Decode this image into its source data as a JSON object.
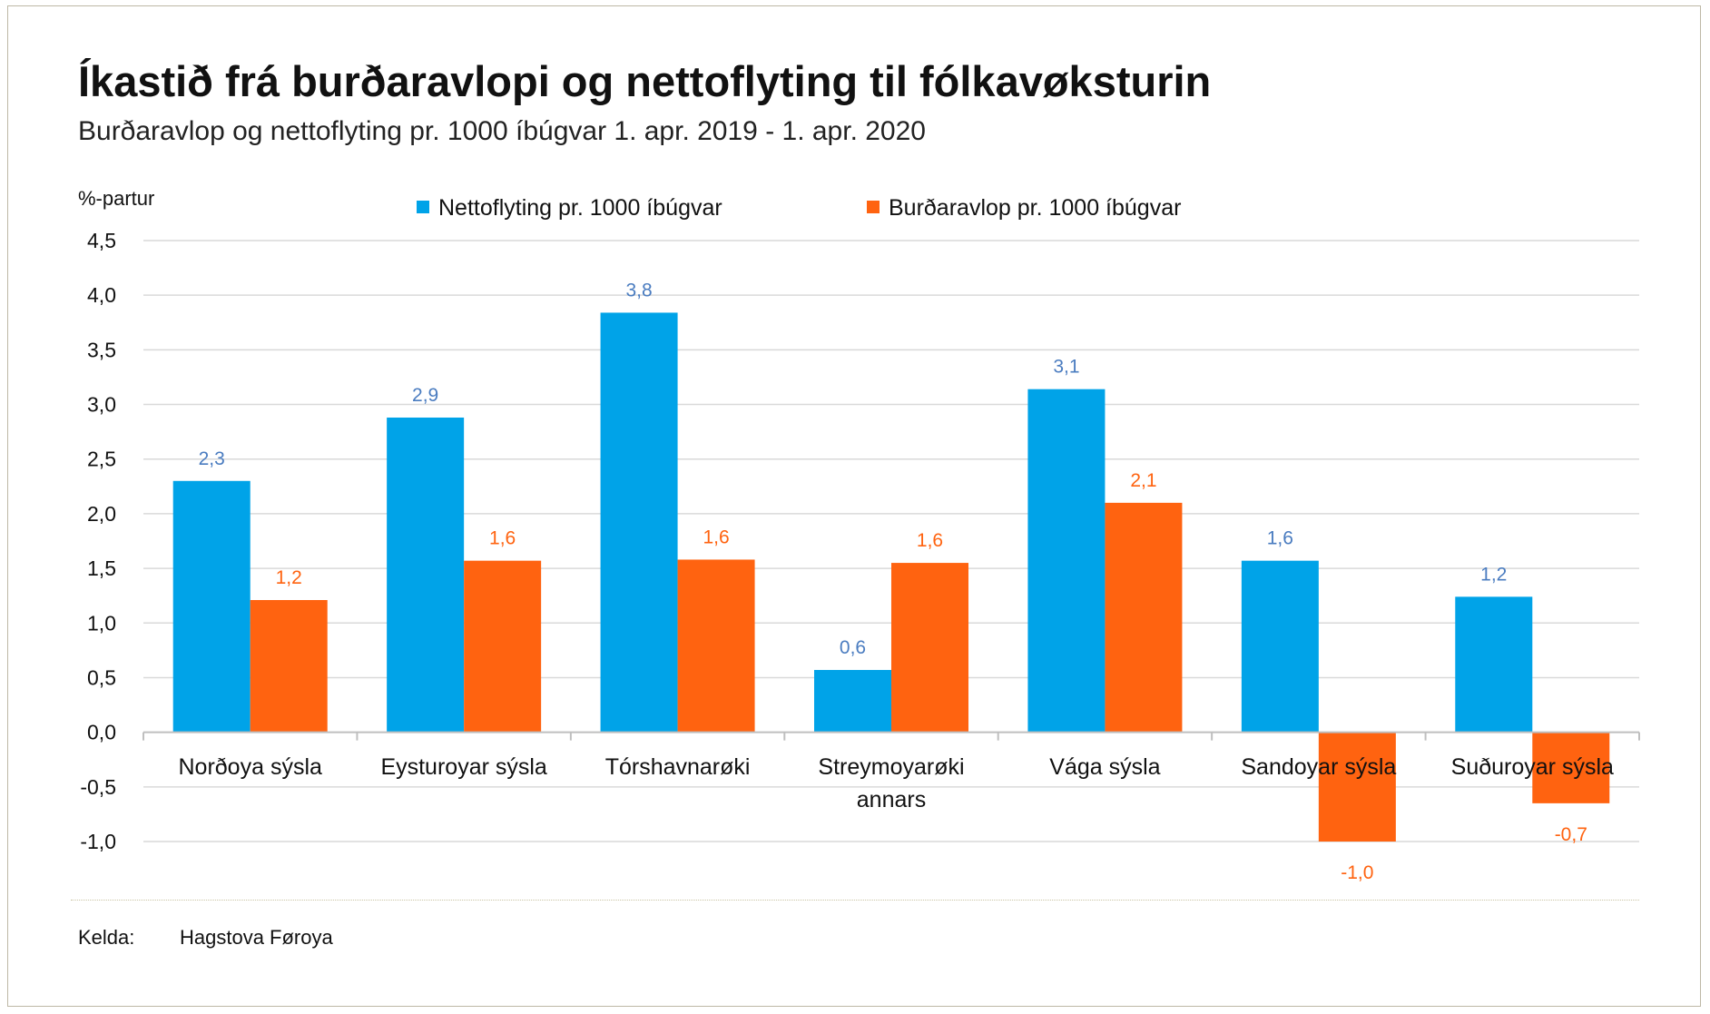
{
  "title": "Íkastið frá burðaravlopi og nettoflyting til fólkavøksturin",
  "subtitle": "Burðaravlop og nettoflyting pr. 1000 íbúgvar 1. apr. 2019 - 1. apr. 2020",
  "source": {
    "label": "Kelda:",
    "value": "Hagstova Føroya"
  },
  "colors": {
    "blue": "#00a3e8",
    "orange": "#ff6310",
    "blue_label": "#4a7cc0",
    "orange_label": "#ff6310",
    "grid": "#d9d9d9"
  },
  "chart_data": {
    "type": "bar",
    "yunit": "%-partur",
    "ylim": [
      -1.0,
      4.5
    ],
    "yticks": [
      4.5,
      4.0,
      3.5,
      3.0,
      2.5,
      2.0,
      1.5,
      1.0,
      0.5,
      0.0,
      -0.5,
      -1.0
    ],
    "ytick_labels": [
      "4,5",
      "4,0",
      "3,5",
      "3,0",
      "2,5",
      "2,0",
      "1,5",
      "1,0",
      "0,5",
      "0,0",
      "-0,5",
      "-1,0"
    ],
    "grid": true,
    "legend_position": "top",
    "categories": [
      "Norðoya sýsla",
      "Eysturoyar sýsla",
      "Tórshavnarøki",
      "Streymoyarøki annars",
      "Vága sýsla",
      "Sandoyar sýsla",
      "Suðuroyar sýsla"
    ],
    "category_lines": [
      [
        "Norðoya sýsla"
      ],
      [
        "Eysturoyar sýsla"
      ],
      [
        "Tórshavnarøki"
      ],
      [
        "Streymoyarøki",
        "annars"
      ],
      [
        "Vága sýsla"
      ],
      [
        "Sandoyar sýsla"
      ],
      [
        "Suðuroyar sýsla"
      ]
    ],
    "series": [
      {
        "name": "Nettoflyting pr. 1000 íbúgvar",
        "color": "#00a3e8",
        "label_color": "#4a7cc0",
        "values": [
          2.3,
          2.88,
          3.84,
          0.57,
          3.14,
          1.57,
          1.24
        ],
        "labels": [
          "2,3",
          "2,9",
          "3,8",
          "0,6",
          "3,1",
          "1,6",
          "1,2"
        ]
      },
      {
        "name": "Burðaravlop pr. 1000 íbúgvar",
        "color": "#ff6310",
        "label_color": "#ff6310",
        "values": [
          1.21,
          1.57,
          1.58,
          1.55,
          2.1,
          -1.0,
          -0.65
        ],
        "labels": [
          "1,2",
          "1,6",
          "1,6",
          "1,6",
          "2,1",
          "-1,0",
          "-0,7"
        ]
      }
    ]
  }
}
